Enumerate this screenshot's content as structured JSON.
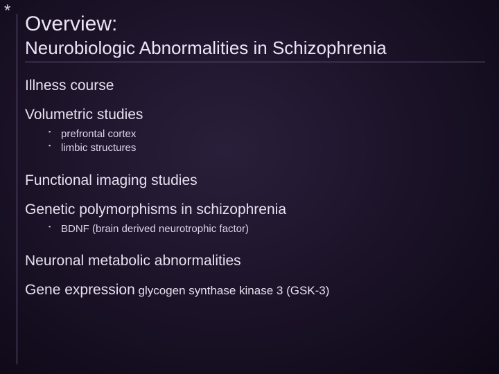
{
  "asterisk": "*",
  "title": {
    "line1": "Overview:",
    "line2": "Neurobiologic Abnormalities in Schizophrenia"
  },
  "sections": {
    "s1": "Illness course",
    "s2": "Volumetric studies",
    "s2_items": {
      "i0": "prefrontal cortex",
      "i1": "limbic structures"
    },
    "s3": "Functional imaging studies",
    "s4": "Genetic polymorphisms in schizophrenia",
    "s4_items": {
      "i0": "BDNF (brain derived neurotrophic factor)"
    },
    "s5": "Neuronal metabolic abnormalities",
    "s6_main": "Gene expression",
    "s6_sub": " glycogen synthase kinase 3 (GSK-3)"
  }
}
